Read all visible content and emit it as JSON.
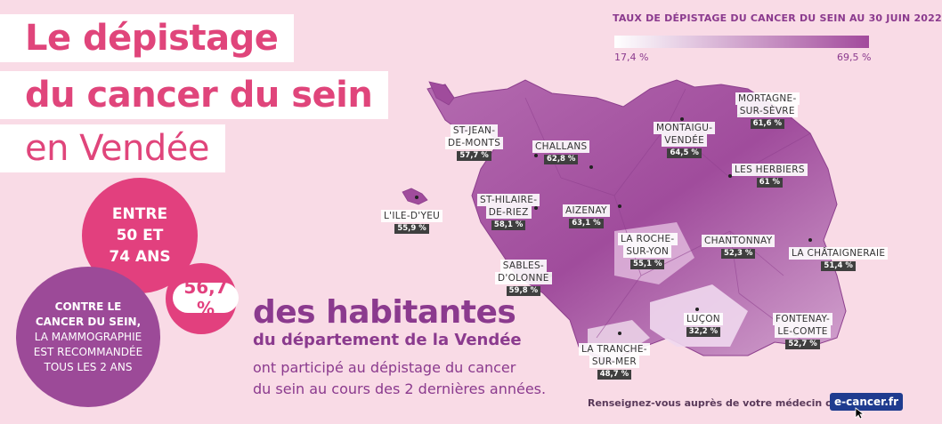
{
  "title": {
    "line1": "Le dépistage",
    "line2": "du cancer du sein",
    "line3": "en Vendée"
  },
  "age_circle": {
    "l1": "ENTRE",
    "l2": "50 ET",
    "l3": "74 ANS"
  },
  "mammo_circle": {
    "l1": "CONTRE LE",
    "l2": "CANCER DU SEIN,",
    "l3": "LA MAMMOGRAPHIE",
    "l4": "EST RECOMMANDÉE",
    "l5": "TOUS LES 2 ANS"
  },
  "headline": {
    "percent": "56,7 %",
    "big": "des habitantes",
    "sub": "du département de la Vendée",
    "desc1": "ont participé au dépistage du cancer",
    "desc2": "du sein au cours des 2 dernières années."
  },
  "legend": {
    "title": "TAUX DE DÉPISTAGE DU CANCER DU SEIN AU 30 JUIN 2022",
    "min": "17,4 %",
    "max": "69,5 %",
    "color_min": "#ffffff",
    "color_max": "#a24a9c"
  },
  "places": [
    {
      "id": "st-jean",
      "name1": "ST-JEAN-",
      "name2": "DE-MONTS",
      "value": "57,7 %"
    },
    {
      "id": "challans",
      "name1": "CHALLANS",
      "name2": "",
      "value": "62,8 %"
    },
    {
      "id": "montaigu",
      "name1": "MONTAIGU-",
      "name2": "VENDÉE",
      "value": "64,5 %"
    },
    {
      "id": "mortagne",
      "name1": "MORTAGNE-",
      "name2": "SUR-SÈVRE",
      "value": "61,6 %"
    },
    {
      "id": "herbiers",
      "name1": "LES HERBIERS",
      "name2": "",
      "value": "61 %"
    },
    {
      "id": "ile-yeu",
      "name1": "L'ILE-D'YEU",
      "name2": "",
      "value": "55,9 %"
    },
    {
      "id": "st-hilaire",
      "name1": "ST-HILAIRE-",
      "name2": "DE-RIEZ",
      "value": "58,1 %"
    },
    {
      "id": "aizenay",
      "name1": "AIZENAY",
      "name2": "",
      "value": "63,1 %"
    },
    {
      "id": "roche",
      "name1": "LA ROCHE-",
      "name2": "SUR-YON",
      "value": "55,1 %"
    },
    {
      "id": "chantonnay",
      "name1": "CHANTONNAY",
      "name2": "",
      "value": "52,3 %"
    },
    {
      "id": "chataigneraie",
      "name1": "LA CHÂTAIGNERAIE",
      "name2": "",
      "value": "51,4 %"
    },
    {
      "id": "sables",
      "name1": "SABLES-",
      "name2": "D'OLONNE",
      "value": "59,8 %"
    },
    {
      "id": "lucon",
      "name1": "LUÇON",
      "name2": "",
      "value": "32,2 %"
    },
    {
      "id": "fontenay",
      "name1": "FONTENAY-",
      "name2": "LE-COMTE",
      "value": "52,7 %"
    },
    {
      "id": "tranche",
      "name1": "LA TRANCHE-",
      "name2": "SUR-MER",
      "value": "48,7 %"
    }
  ],
  "footer": {
    "text": "Renseignez-vous auprès de votre médecin ou sur",
    "link": "e-cancer.fr"
  }
}
